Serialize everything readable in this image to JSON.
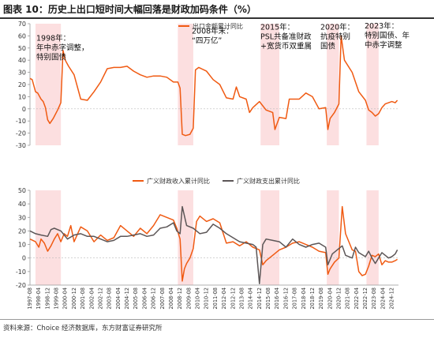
{
  "header": {
    "title": "图表 10：历史上出口短时间大幅回落是财政加码条件（%）"
  },
  "footer": {
    "source": "资料来源：Choice 经济数据库，东方财富证券研究所"
  },
  "colors": {
    "orange": "#f05a12",
    "gray": "#5c5657",
    "shade": "#fcd9da",
    "axis": "#999999"
  },
  "chart_data": [
    {
      "type": "line",
      "legend": [
        "出口金额累计同比"
      ],
      "legend_position": "top-center",
      "ylim": [
        -30,
        70
      ],
      "yticks": [
        -30,
        -20,
        -10,
        0,
        10,
        20,
        30,
        40,
        50,
        60,
        70
      ],
      "series": [
        {
          "name": "出口金额累计同比",
          "color": "#f05a12",
          "points": [
            [
              "1997-08",
              25
            ],
            [
              "1997-10",
              24
            ],
            [
              "1998-01",
              14
            ],
            [
              "1998-03",
              13
            ],
            [
              "1998-06",
              8
            ],
            [
              "1998-08",
              6
            ],
            [
              "1998-10",
              1
            ],
            [
              "1998-12",
              -9
            ],
            [
              "1999-02",
              -12
            ],
            [
              "1999-05",
              -8
            ],
            [
              "1999-09",
              -1
            ],
            [
              "1999-12",
              5
            ],
            [
              "2000-02",
              48
            ],
            [
              "2000-04",
              40
            ],
            [
              "2000-07",
              35
            ],
            [
              "2000-12",
              28
            ],
            [
              "2001-06",
              8
            ],
            [
              "2001-12",
              7
            ],
            [
              "2002-06",
              14
            ],
            [
              "2002-12",
              22
            ],
            [
              "2003-06",
              33
            ],
            [
              "2003-12",
              34
            ],
            [
              "2004-06",
              34
            ],
            [
              "2004-12",
              35
            ],
            [
              "2005-06",
              31
            ],
            [
              "2005-12",
              28
            ],
            [
              "2006-06",
              26
            ],
            [
              "2006-12",
              27
            ],
            [
              "2007-06",
              27
            ],
            [
              "2007-12",
              26
            ],
            [
              "2008-06",
              22
            ],
            [
              "2008-10",
              22
            ],
            [
              "2008-12",
              17
            ],
            [
              "2009-02",
              -21
            ],
            [
              "2009-05",
              -22
            ],
            [
              "2009-09",
              -21
            ],
            [
              "2009-12",
              -16
            ],
            [
              "2010-02",
              32
            ],
            [
              "2010-05",
              34
            ],
            [
              "2010-12",
              31
            ],
            [
              "2011-06",
              24
            ],
            [
              "2011-12",
              20
            ],
            [
              "2012-06",
              9
            ],
            [
              "2012-12",
              8
            ],
            [
              "2013-03",
              18
            ],
            [
              "2013-06",
              10
            ],
            [
              "2013-12",
              8
            ],
            [
              "2014-03",
              -3
            ],
            [
              "2014-06",
              1
            ],
            [
              "2014-12",
              6
            ],
            [
              "2015-06",
              -1
            ],
            [
              "2015-12",
              -3
            ],
            [
              "2016-02",
              -17
            ],
            [
              "2016-06",
              -7
            ],
            [
              "2016-12",
              -8
            ],
            [
              "2017-03",
              8
            ],
            [
              "2017-12",
              8
            ],
            [
              "2018-06",
              13
            ],
            [
              "2018-12",
              10
            ],
            [
              "2019-06",
              0
            ],
            [
              "2019-12",
              1
            ],
            [
              "2020-02",
              -17
            ],
            [
              "2020-04",
              -8
            ],
            [
              "2020-08",
              -3
            ],
            [
              "2020-12",
              4
            ],
            [
              "2021-02",
              60
            ],
            [
              "2021-05",
              40
            ],
            [
              "2021-12",
              30
            ],
            [
              "2022-06",
              14
            ],
            [
              "2022-12",
              7
            ],
            [
              "2023-03",
              -1
            ],
            [
              "2023-06",
              -3
            ],
            [
              "2023-09",
              -6
            ],
            [
              "2023-12",
              -4
            ],
            [
              "2024-03",
              1
            ],
            [
              "2024-06",
              4
            ],
            [
              "2024-09",
              5
            ],
            [
              "2024-12",
              6
            ],
            [
              "2025-03",
              5
            ],
            [
              "2025-05",
              7
            ]
          ]
        }
      ],
      "shaded_periods": [
        [
          "1998-01",
          "1999-12"
        ],
        [
          "2008-10",
          "2009-12"
        ],
        [
          "2015-01",
          "2016-06"
        ],
        [
          "2020-01",
          "2020-12"
        ],
        [
          "2023-01",
          "2023-12"
        ]
      ],
      "annotations": [
        {
          "text": [
            "1998年：",
            "年中赤字调整，",
            "特别国债"
          ],
          "at": [
            "1998-01",
            56
          ]
        },
        {
          "text": [
            "2008年末：",
            "“四万亿”"
          ],
          "at": [
            "2008-10",
            62
          ]
        },
        {
          "text": [
            "2015年：",
            "PSL共备准财政",
            "+宽货币双重属"
          ],
          "at": [
            "2015-03",
            65
          ]
        },
        {
          "text": [
            "2020年：",
            "抗疫特别",
            "国债"
          ],
          "at": [
            "2020-01",
            65
          ]
        },
        {
          "text": [
            "2023年：",
            "特别国债、年",
            "中赤字调整"
          ],
          "at": [
            "2023-01",
            66
          ]
        }
      ]
    },
    {
      "type": "line",
      "legend": [
        "广义财政收入累计同比",
        "广义财政支出累计同比"
      ],
      "legend_position": "top",
      "ylim": [
        -20,
        50
      ],
      "yticks": [
        -20,
        -10,
        0,
        10,
        20,
        30,
        40,
        50
      ],
      "series": [
        {
          "name": "广义财政收入累计同比",
          "color": "#f05a12",
          "points": [
            [
              "1997-08",
              14
            ],
            [
              "1998-01",
              12
            ],
            [
              "1998-04",
              8
            ],
            [
              "1998-06",
              14
            ],
            [
              "1998-09",
              11
            ],
            [
              "1998-12",
              5
            ],
            [
              "1999-03",
              9
            ],
            [
              "1999-06",
              14
            ],
            [
              "1999-09",
              18
            ],
            [
              "1999-12",
              12
            ],
            [
              "2000-03",
              18
            ],
            [
              "2000-06",
              16
            ],
            [
              "2000-09",
              24
            ],
            [
              "2000-12",
              12
            ],
            [
              "2001-06",
              23
            ],
            [
              "2001-12",
              20
            ],
            [
              "2002-06",
              12
            ],
            [
              "2002-12",
              17
            ],
            [
              "2003-06",
              13
            ],
            [
              "2003-12",
              15
            ],
            [
              "2004-06",
              24
            ],
            [
              "2004-12",
              20
            ],
            [
              "2005-06",
              16
            ],
            [
              "2005-12",
              22
            ],
            [
              "2006-06",
              18
            ],
            [
              "2006-12",
              24
            ],
            [
              "2007-06",
              32
            ],
            [
              "2007-12",
              30
            ],
            [
              "2008-06",
              28
            ],
            [
              "2008-09",
              22
            ],
            [
              "2008-12",
              14
            ],
            [
              "2009-02",
              -17
            ],
            [
              "2009-04",
              -8
            ],
            [
              "2009-06",
              -4
            ],
            [
              "2009-09",
              0
            ],
            [
              "2009-12",
              7
            ],
            [
              "2010-03",
              27
            ],
            [
              "2010-06",
              31
            ],
            [
              "2010-12",
              27
            ],
            [
              "2011-06",
              29
            ],
            [
              "2011-12",
              26
            ],
            [
              "2012-06",
              11
            ],
            [
              "2012-12",
              12
            ],
            [
              "2013-06",
              9
            ],
            [
              "2013-12",
              12
            ],
            [
              "2014-06",
              8
            ],
            [
              "2014-12",
              6
            ],
            [
              "2015-03",
              -5
            ],
            [
              "2015-06",
              -2
            ],
            [
              "2015-12",
              2
            ],
            [
              "2016-06",
              6
            ],
            [
              "2016-12",
              8
            ],
            [
              "2017-06",
              11
            ],
            [
              "2017-12",
              12
            ],
            [
              "2018-06",
              10
            ],
            [
              "2018-12",
              8
            ],
            [
              "2019-06",
              5
            ],
            [
              "2019-12",
              4
            ],
            [
              "2020-02",
              -12
            ],
            [
              "2020-04",
              -8
            ],
            [
              "2020-08",
              -3
            ],
            [
              "2020-12",
              0
            ],
            [
              "2021-03",
              38
            ],
            [
              "2021-06",
              18
            ],
            [
              "2021-12",
              6
            ],
            [
              "2022-03",
              5
            ],
            [
              "2022-06",
              -10
            ],
            [
              "2022-09",
              -13
            ],
            [
              "2022-12",
              -12
            ],
            [
              "2023-03",
              -6
            ],
            [
              "2023-06",
              2
            ],
            [
              "2023-09",
              1
            ],
            [
              "2023-12",
              3
            ],
            [
              "2024-03",
              -5
            ],
            [
              "2024-06",
              -2
            ],
            [
              "2024-09",
              -3
            ],
            [
              "2024-12",
              -3
            ],
            [
              "2025-03",
              -2
            ],
            [
              "2025-05",
              -1
            ]
          ]
        },
        {
          "name": "广义财政支出累计同比",
          "color": "#5c5657",
          "points": [
            [
              "1997-08",
              20
            ],
            [
              "1998-01",
              18
            ],
            [
              "1998-06",
              17
            ],
            [
              "1998-12",
              16
            ],
            [
              "1999-03",
              21
            ],
            [
              "1999-06",
              22
            ],
            [
              "1999-12",
              20
            ],
            [
              "2000-06",
              14
            ],
            [
              "2000-12",
              17
            ],
            [
              "2001-06",
              18
            ],
            [
              "2001-12",
              16
            ],
            [
              "2002-06",
              16
            ],
            [
              "2002-12",
              14
            ],
            [
              "2003-06",
              12
            ],
            [
              "2003-12",
              13
            ],
            [
              "2004-06",
              16
            ],
            [
              "2004-12",
              16
            ],
            [
              "2005-06",
              17
            ],
            [
              "2005-12",
              18
            ],
            [
              "2006-06",
              16
            ],
            [
              "2006-12",
              17
            ],
            [
              "2007-06",
              22
            ],
            [
              "2007-12",
              23
            ],
            [
              "2008-06",
              26
            ],
            [
              "2008-09",
              20
            ],
            [
              "2008-12",
              18
            ],
            [
              "2009-02",
              38
            ],
            [
              "2009-06",
              24
            ],
            [
              "2009-12",
              22
            ],
            [
              "2010-06",
              18
            ],
            [
              "2010-12",
              19
            ],
            [
              "2011-06",
              25
            ],
            [
              "2011-12",
              22
            ],
            [
              "2012-06",
              18
            ],
            [
              "2012-12",
              15
            ],
            [
              "2013-06",
              12
            ],
            [
              "2013-12",
              11
            ],
            [
              "2014-06",
              10
            ],
            [
              "2014-09",
              8
            ],
            [
              "2014-12",
              -19
            ],
            [
              "2015-03",
              10
            ],
            [
              "2015-06",
              14
            ],
            [
              "2015-12",
              13
            ],
            [
              "2016-06",
              12
            ],
            [
              "2016-12",
              8
            ],
            [
              "2017-06",
              14
            ],
            [
              "2017-12",
              10
            ],
            [
              "2018-06",
              8
            ],
            [
              "2018-12",
              10
            ],
            [
              "2019-06",
              11
            ],
            [
              "2019-12",
              8
            ],
            [
              "2020-02",
              -5
            ],
            [
              "2020-06",
              3
            ],
            [
              "2020-12",
              7
            ],
            [
              "2021-03",
              9
            ],
            [
              "2021-06",
              2
            ],
            [
              "2021-12",
              0
            ],
            [
              "2022-03",
              8
            ],
            [
              "2022-06",
              4
            ],
            [
              "2022-12",
              1
            ],
            [
              "2023-03",
              5
            ],
            [
              "2023-06",
              0
            ],
            [
              "2023-09",
              -4
            ],
            [
              "2023-12",
              0
            ],
            [
              "2024-03",
              4
            ],
            [
              "2024-06",
              2
            ],
            [
              "2024-09",
              0
            ],
            [
              "2024-12",
              1
            ],
            [
              "2025-03",
              3
            ],
            [
              "2025-05",
              6
            ]
          ]
        }
      ],
      "shaded_periods": [
        [
          "1998-01",
          "1999-12"
        ],
        [
          "2008-10",
          "2009-12"
        ],
        [
          "2015-01",
          "2016-06"
        ],
        [
          "2020-01",
          "2020-12"
        ],
        [
          "2023-01",
          "2023-12"
        ]
      ]
    }
  ],
  "x_tick_labels": [
    "1997-08",
    "1998-04",
    "1998-12",
    "1999-08",
    "2000-04",
    "2000-12",
    "2001-08",
    "2002-04",
    "2002-12",
    "2003-08",
    "2004-04",
    "2004-12",
    "2005-08",
    "2006-04",
    "2006-12",
    "2007-08",
    "2008-04",
    "2008-12",
    "2009-08",
    "2010-04",
    "2010-12",
    "2011-08",
    "2012-04",
    "2012-12",
    "2013-08",
    "2014-04",
    "2014-12",
    "2015-08",
    "2016-04",
    "2016-12",
    "2017-08",
    "2018-04",
    "2018-12",
    "2019-08",
    "2020-04",
    "2020-12",
    "2021-08",
    "2022-04",
    "2022-12",
    "2023-08",
    "2024-04",
    "2024-12"
  ]
}
